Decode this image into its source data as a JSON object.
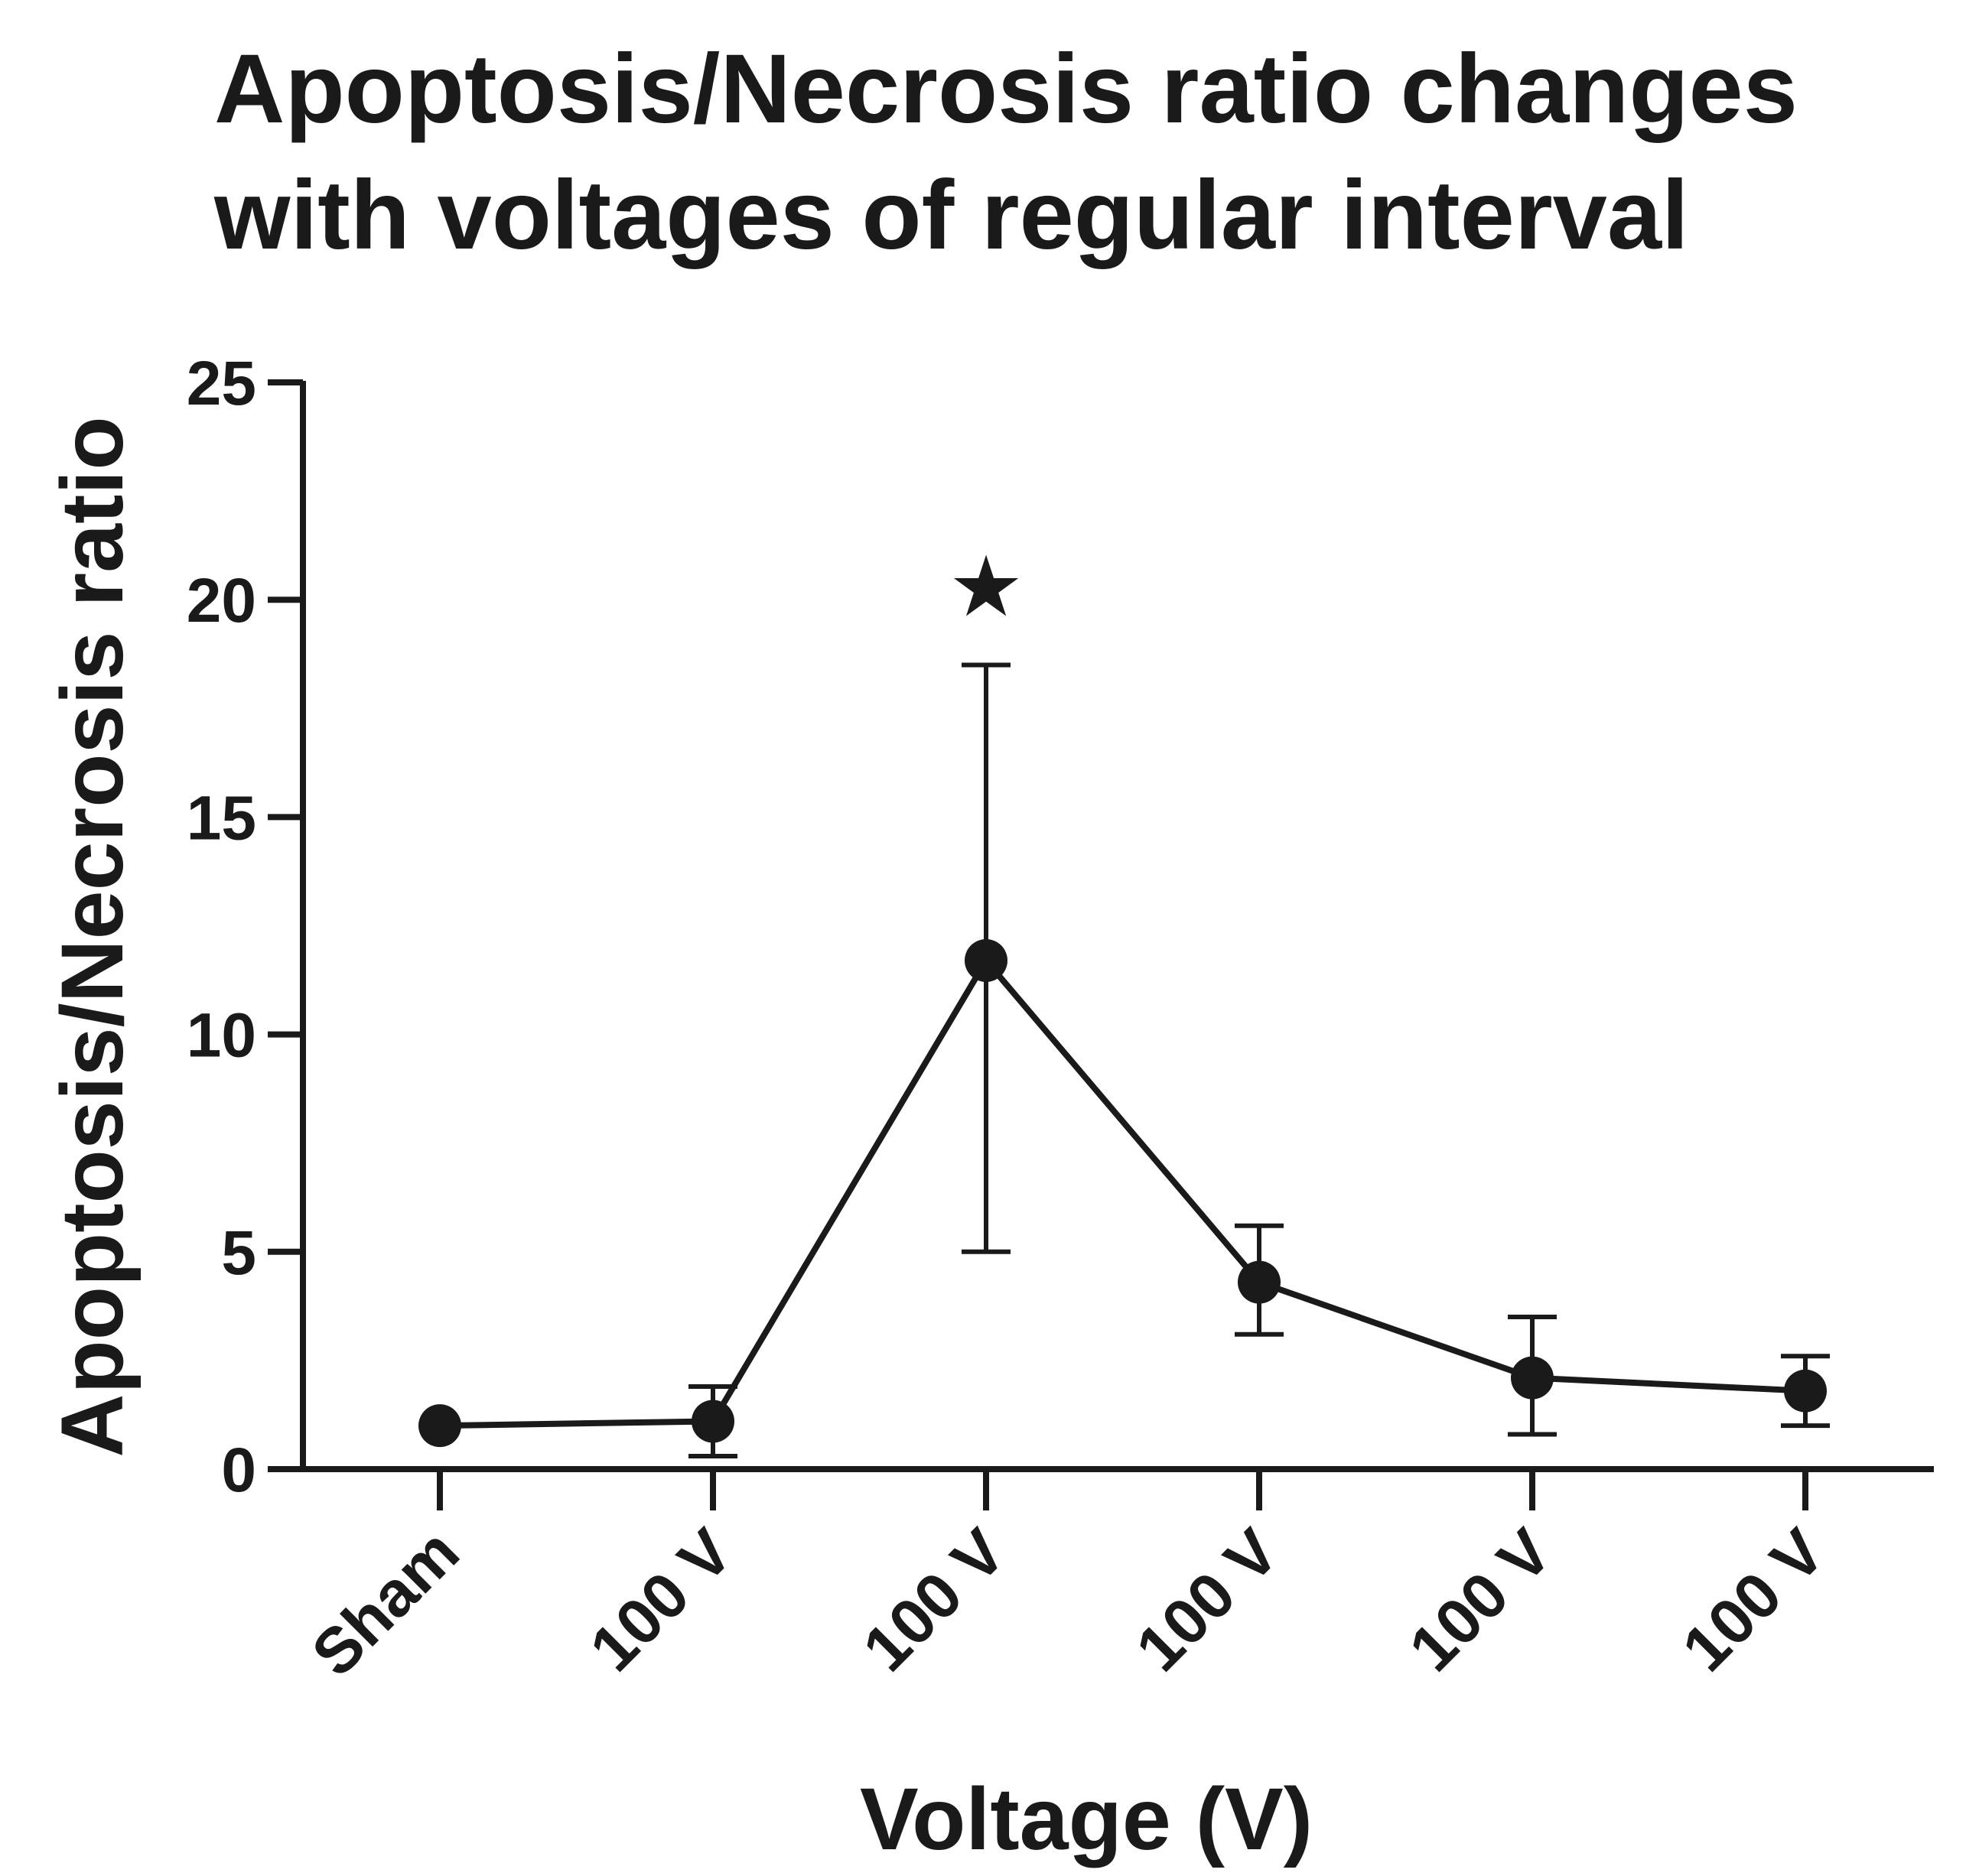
{
  "chart_data": {
    "type": "line",
    "title_lines": [
      "Apoptosis/Necrosis ratio changes",
      "with voltages of regular interval"
    ],
    "xlabel": "Voltage (V)",
    "ylabel": "Apoptosis/Necrosis ratio",
    "ylim": [
      0,
      25
    ],
    "yticks": [
      "0",
      "5",
      "10",
      "15",
      "20",
      "25"
    ],
    "categories": [
      "Sham",
      "100 V",
      "100 V",
      "100 V",
      "100 V",
      "100 V"
    ],
    "values": [
      1.0,
      1.1,
      11.7,
      4.3,
      2.1,
      1.8
    ],
    "err_low": [
      null,
      0.3,
      5.0,
      3.1,
      0.8,
      1.0
    ],
    "err_high": [
      null,
      1.9,
      18.5,
      5.6,
      3.5,
      2.6
    ],
    "annotation": {
      "symbol": "★",
      "category_index": 2,
      "y": 20.3
    },
    "color": "#1a1a1a"
  }
}
